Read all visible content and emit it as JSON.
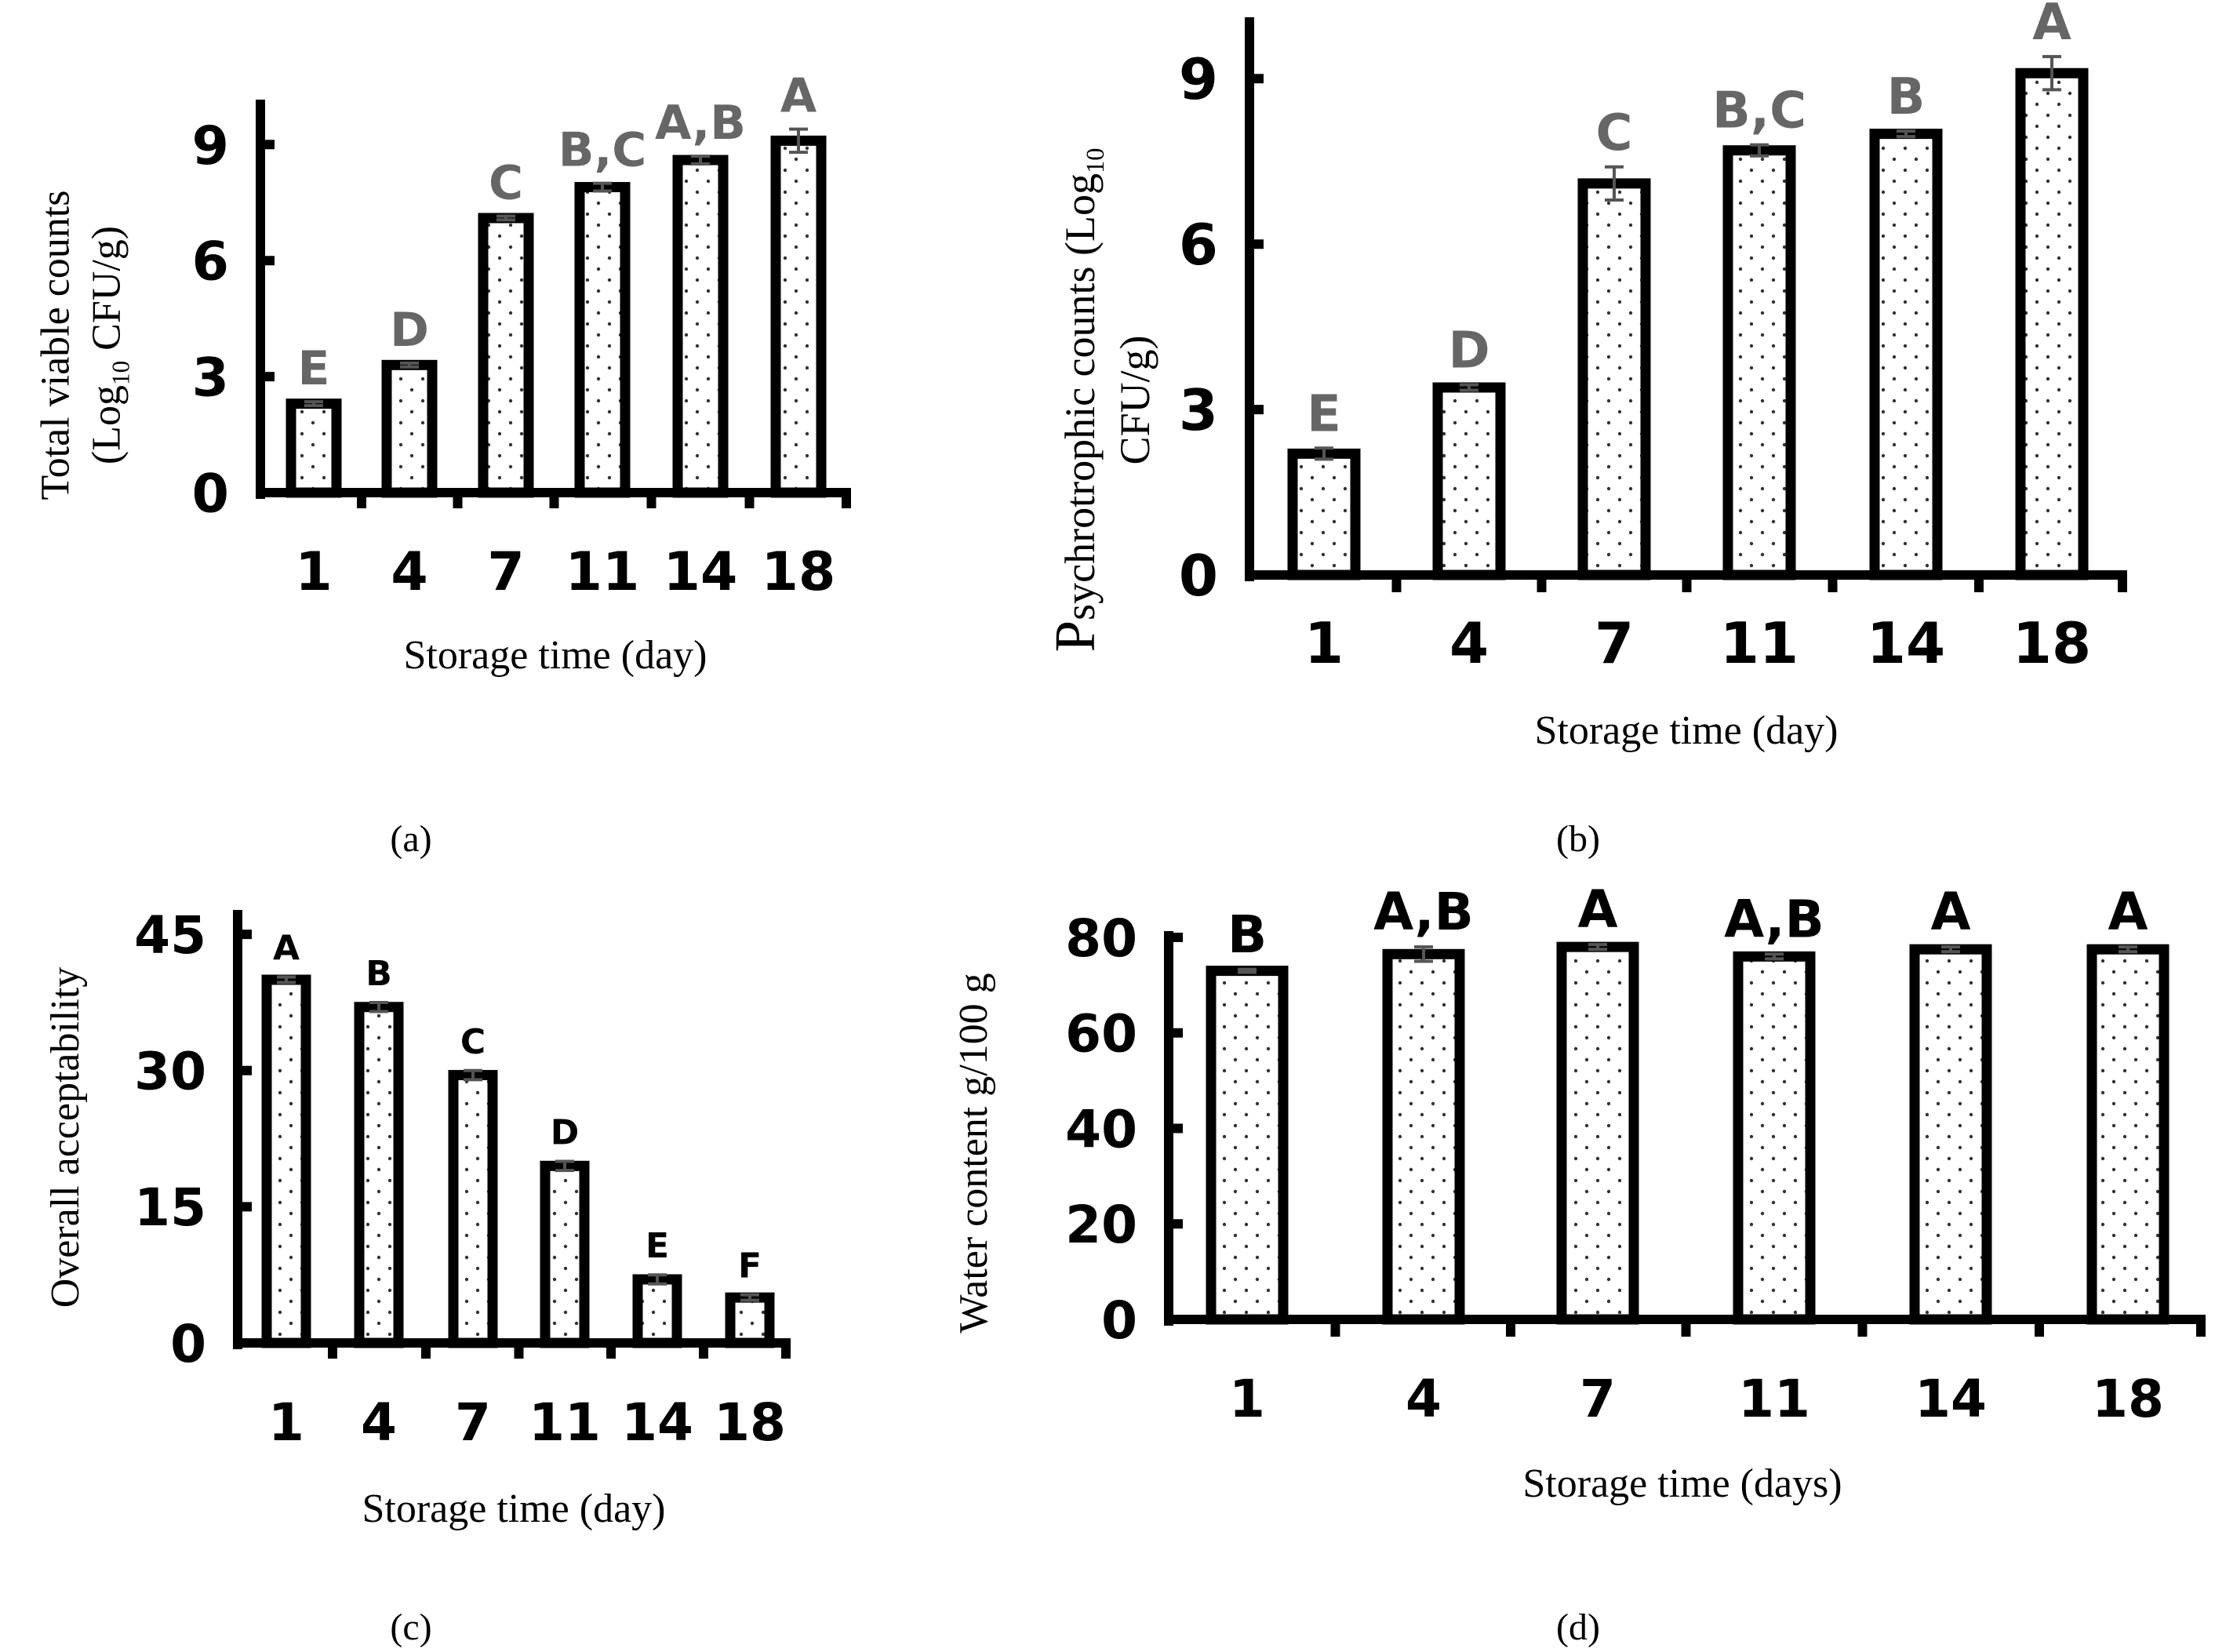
{
  "chart_data": [
    {
      "type": "bar",
      "panel": "a",
      "caption": "(a)",
      "title": "",
      "xlabel": "Storage time (day)",
      "ylabel": {
        "line1": "Total viable counts",
        "line2_pre": "(Log",
        "line2_sub": "10",
        "line2_post": " CFU/g)"
      },
      "categories": [
        "1",
        "4",
        "7",
        "11",
        "14",
        "18"
      ],
      "values": [
        2.3,
        3.3,
        7.1,
        7.9,
        8.6,
        9.1
      ],
      "errors": [
        0.05,
        0.05,
        0.05,
        0.1,
        0.1,
        0.3
      ],
      "letters": [
        "E",
        "D",
        "C",
        "B,C",
        "A,B",
        "A"
      ],
      "letter_color": "#666666",
      "ylim": [
        0,
        10
      ],
      "yticks": [
        0,
        3,
        6,
        9
      ],
      "grid": false
    },
    {
      "type": "bar",
      "panel": "b",
      "caption": "(b)",
      "title": "",
      "xlabel": "Storage time (day)",
      "ylabel": {
        "line1_pre": "P",
        "line1_post": "sychrotrophic counts (Log",
        "line1_sub": "10",
        "line2": "CFU/g)"
      },
      "categories": [
        "1",
        "4",
        "7",
        "11",
        "14",
        "18"
      ],
      "values": [
        2.2,
        3.4,
        7.1,
        7.7,
        8.0,
        9.1
      ],
      "errors": [
        0.1,
        0.05,
        0.3,
        0.1,
        0.05,
        0.3
      ],
      "letters": [
        "E",
        "D",
        "C",
        "B,C",
        "B",
        "A"
      ],
      "letter_color": "#666666",
      "ylim": [
        0,
        10
      ],
      "yticks": [
        0,
        3,
        6,
        9
      ],
      "grid": false
    },
    {
      "type": "bar",
      "panel": "c",
      "caption": "(c)",
      "title": "",
      "xlabel": "Storage time (day)",
      "ylabel": {
        "line1": "Overall acceptability"
      },
      "categories": [
        "1",
        "4",
        "7",
        "11",
        "14",
        "18"
      ],
      "values": [
        40,
        37,
        29.5,
        19.5,
        7,
        5
      ],
      "errors": [
        0.3,
        0.5,
        0.5,
        0.5,
        0.5,
        0.3
      ],
      "letters": [
        "A",
        "B",
        "C",
        "D",
        "E",
        "F"
      ],
      "letter_color": "#000000",
      "ylim": [
        0,
        47
      ],
      "yticks": [
        0,
        15,
        30,
        45
      ],
      "grid": false
    },
    {
      "type": "bar",
      "panel": "d",
      "caption": "(d)",
      "title": "",
      "xlabel": "Storage time (days)",
      "ylabel": {
        "line1": "Water content g/100 g"
      },
      "categories": [
        "1",
        "4",
        "7",
        "11",
        "14",
        "18"
      ],
      "values": [
        73,
        76.5,
        78,
        76,
        77.5,
        77.5
      ],
      "errors": [
        0.3,
        1.5,
        0.5,
        0.5,
        0.5,
        0.5
      ],
      "letters": [
        "B",
        "A,B",
        "A",
        "A,B",
        "A",
        "A"
      ],
      "letter_color": "#000000",
      "ylim": [
        0,
        80
      ],
      "yticks": [
        0,
        20,
        40,
        60,
        80
      ],
      "grid": false
    }
  ]
}
